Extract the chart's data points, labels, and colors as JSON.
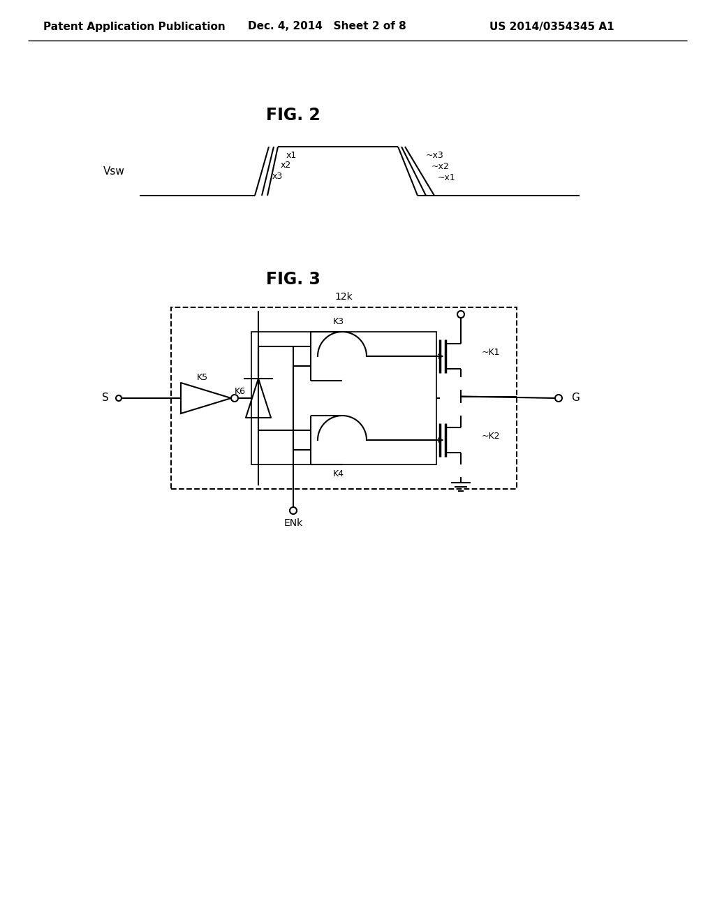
{
  "bg_color": "#ffffff",
  "header_left": "Patent Application Publication",
  "header_mid": "Dec. 4, 2014   Sheet 2 of 8",
  "header_right": "US 2014/0354345 A1",
  "fig2_title": "FIG. 2",
  "fig3_title": "FIG. 3",
  "vsw_label": "Vsw",
  "label_12k": "12k",
  "label_enk": "ENk",
  "label_s": "S",
  "label_g": "G",
  "label_k1": "~K1",
  "label_k2": "~K2",
  "label_k3": "K3",
  "label_k4": "K4",
  "label_k5": "K5",
  "label_k6": "K6"
}
